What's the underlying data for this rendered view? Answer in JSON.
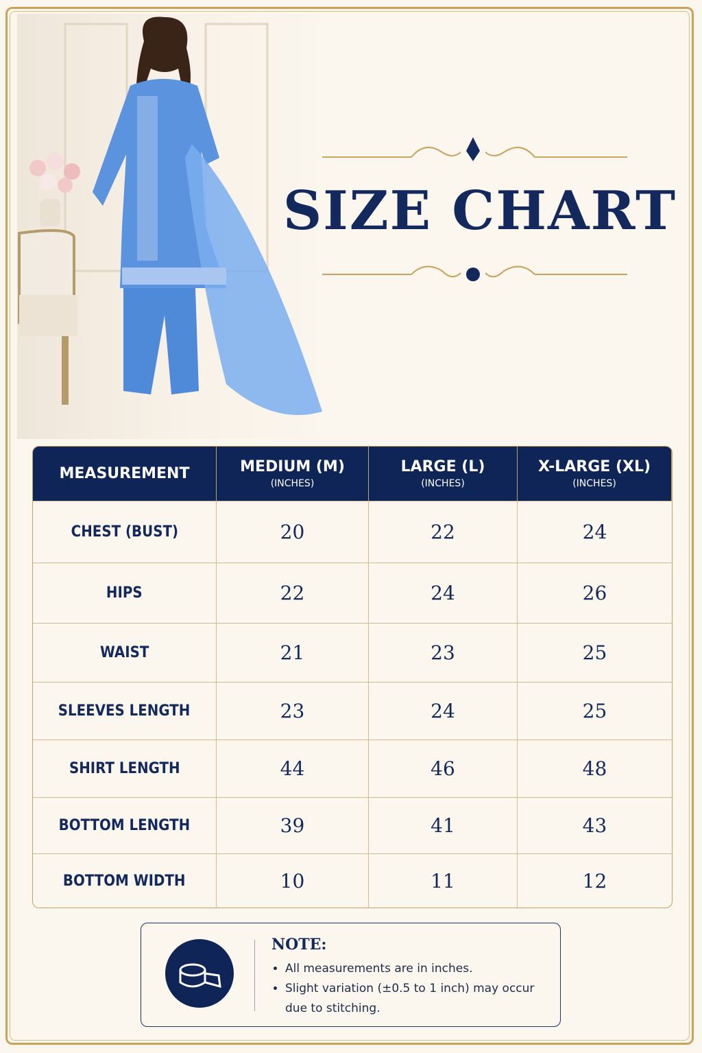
{
  "header": {
    "title": "SIZE CHART"
  },
  "table": {
    "columns": [
      {
        "label": "MEASUREMENT"
      },
      {
        "label": "MEDIUM (M)",
        "unit": "(INCHES)"
      },
      {
        "label": "LARGE (L)",
        "unit": "(INCHES)"
      },
      {
        "label": "X-LARGE (XL)",
        "unit": "(INCHES)"
      }
    ],
    "rows": [
      [
        "CHEST (BUST)",
        20,
        22,
        24
      ],
      [
        "HIPS",
        22,
        24,
        26
      ],
      [
        "WAIST",
        21,
        23,
        25
      ],
      [
        "SLEEVES LENGTH",
        23,
        24,
        25
      ],
      [
        "SHIRT LENGTH",
        44,
        46,
        48
      ],
      [
        "BOTTOM LENGTH",
        39,
        41,
        43
      ],
      [
        "BOTTOM WIDTH",
        10,
        11,
        12
      ]
    ]
  },
  "note": {
    "title": "NOTE:",
    "items": [
      "All measurements are in inches.",
      "Slight variation (±0.5 to 1 inch) may occur due to stitching."
    ]
  }
}
